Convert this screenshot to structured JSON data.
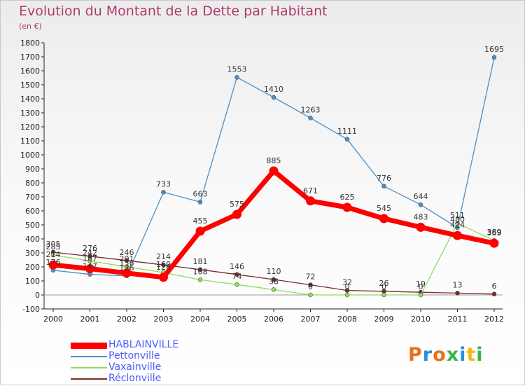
{
  "header": {
    "title": "Evolution du Montant de la Dette par Habitant",
    "unit": "(en €)"
  },
  "logo": {
    "text": "Proxiti",
    "colors": [
      "#e8701c",
      "#2b8fd9",
      "#e8701c",
      "#3bb34a",
      "#2b8fd9",
      "#f2b71a",
      "#3bb34a"
    ]
  },
  "chart_data": {
    "type": "line",
    "x": [
      "2000",
      "2001",
      "2002",
      "2003",
      "2004",
      "2005",
      "2006",
      "2007",
      "2008",
      "2009",
      "2010",
      "2011",
      "2012"
    ],
    "ylim": [
      -100,
      1800
    ],
    "yticks": [
      -100,
      0,
      100,
      200,
      300,
      400,
      500,
      600,
      700,
      800,
      900,
      1000,
      1100,
      1200,
      1300,
      1400,
      1500,
      1600,
      1700,
      1800
    ],
    "grid": false,
    "legend_position": "bottom-left",
    "series": [
      {
        "name": "Réclonville",
        "color": "#7a2a2a",
        "values": [
          305,
          276,
          246,
          214,
          181,
          146,
          110,
          72,
          32,
          26,
          19,
          13,
          6
        ]
      },
      {
        "name": "Vaxainville",
        "color": "#8fdc5a",
        "values": [
          285,
          242,
          201,
          160,
          108,
          74,
          38,
          0,
          0,
          0,
          0,
          511,
          389
        ]
      },
      {
        "name": "Pettonville",
        "color": "#4a90c8",
        "values": [
          176,
          147,
          136,
          733,
          663,
          1553,
          1410,
          1263,
          1111,
          776,
          644,
          480,
          1695
        ]
      },
      {
        "name": "HABLAINVILLE",
        "color": "#ff0000",
        "values": [
          214,
          187,
          156,
          126,
          455,
          575,
          885,
          671,
          625,
          545,
          483,
          424,
          369
        ]
      }
    ],
    "legend_order": [
      "HABLAINVILLE",
      "Pettonville",
      "Vaxainville",
      "Réclonville"
    ]
  }
}
